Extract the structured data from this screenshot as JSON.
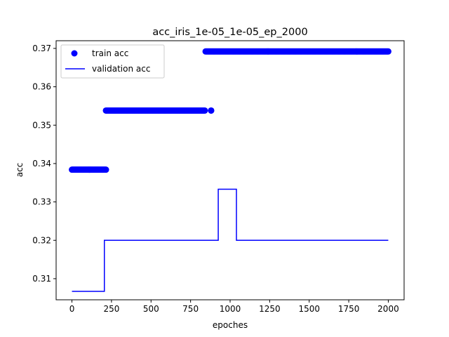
{
  "chart_data": {
    "type": "line",
    "title": "acc_iris_1e-05_1e-05_ep_2000",
    "xlabel": "epoches",
    "ylabel": "acc",
    "xlim": [
      -100,
      2100
    ],
    "ylim": [
      0.3045,
      0.372
    ],
    "xticks": [
      0,
      250,
      500,
      750,
      1000,
      1250,
      1500,
      1750,
      2000
    ],
    "yticks": [
      0.31,
      0.32,
      0.33,
      0.34,
      0.35,
      0.36,
      0.37
    ],
    "ytick_labels": [
      "0.31",
      "0.32",
      "0.33",
      "0.34",
      "0.35",
      "0.36",
      "0.37"
    ],
    "grid": false,
    "legend_position": "upper-left",
    "series": [
      {
        "name": "train acc",
        "kind": "scatter",
        "color": "#0000ff",
        "segments": [
          {
            "x_start": 0,
            "x_end": 215,
            "y": 0.3384
          },
          {
            "x_start": 215,
            "x_end": 840,
            "y": 0.3538
          },
          {
            "x_start": 880,
            "x_end": 880,
            "y": 0.3538
          },
          {
            "x_start": 845,
            "x_end": 2000,
            "y": 0.3692
          }
        ]
      },
      {
        "name": "validation acc",
        "kind": "line",
        "color": "#0000ff",
        "points": [
          [
            0,
            0.3067
          ],
          [
            205,
            0.3067
          ],
          [
            205,
            0.32
          ],
          [
            925,
            0.32
          ],
          [
            925,
            0.3333
          ],
          [
            1040,
            0.3333
          ],
          [
            1040,
            0.32
          ],
          [
            2000,
            0.32
          ]
        ]
      }
    ]
  }
}
